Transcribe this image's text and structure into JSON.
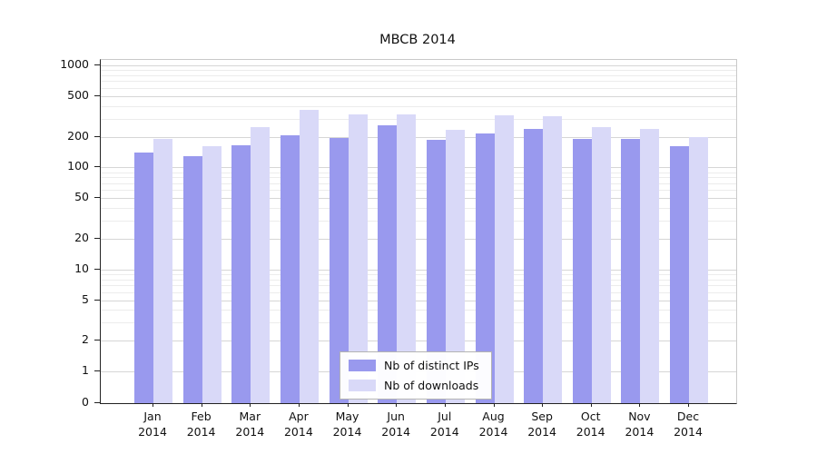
{
  "chart_data": {
    "type": "bar",
    "title": "MBCB 2014",
    "categories": [
      "Jan",
      "Feb",
      "Mar",
      "Apr",
      "May",
      "Jun",
      "Jul",
      "Aug",
      "Sep",
      "Oct",
      "Nov",
      "Dec"
    ],
    "year": "2014",
    "series": [
      {
        "name": "Nb of distinct IPs",
        "color": "#9999ee",
        "values": [
          140,
          130,
          165,
          205,
          195,
          260,
          185,
          215,
          240,
          190,
          190,
          160
        ]
      },
      {
        "name": "Nb of downloads",
        "color": "#d9d9f8",
        "values": [
          190,
          160,
          250,
          370,
          330,
          330,
          235,
          325,
          320,
          250,
          240,
          200
        ]
      }
    ],
    "y_ticks": [
      0,
      1,
      2,
      5,
      10,
      20,
      50,
      100,
      200,
      500,
      1000
    ],
    "y_scale": "symlog",
    "ylim": [
      0,
      1150
    ],
    "grid": true,
    "legend_position": "bottom-center",
    "xlabel": "",
    "ylabel": ""
  }
}
